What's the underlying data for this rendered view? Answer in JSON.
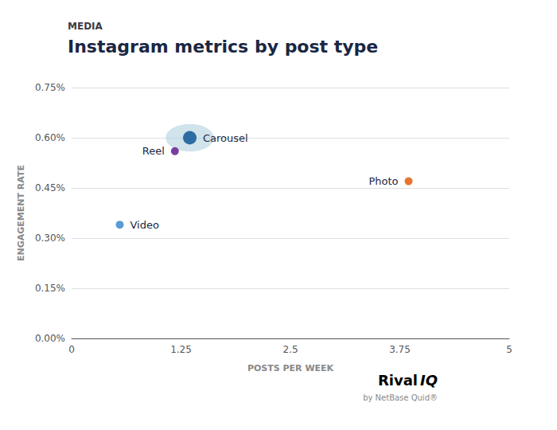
{
  "chart_data": {
    "type": "scatter",
    "title": "Instagram metrics by post type",
    "subtitle": "MEDIA",
    "xlabel": "POSTS PER WEEK",
    "ylabel": "ENGAGEMENT RATE",
    "labels": [
      "Carousel",
      "Reel",
      "Photo",
      "Video"
    ],
    "x": [
      1.35,
      1.18,
      3.85,
      0.55
    ],
    "values": [
      0.006,
      0.0056,
      0.0047,
      0.0034
    ],
    "colors": [
      "#2e6da4",
      "#7b3fa0",
      "#e87430",
      "#5b9bd5"
    ],
    "bubble": {
      "x": 1.35,
      "y": 0.006,
      "width": 0.55,
      "height": 0.000825,
      "color": "#b8d4e0"
    },
    "xlim": [
      0,
      5
    ],
    "ylim": [
      0,
      0.0075
    ],
    "xticks": [
      0,
      1.25,
      2.5,
      3.75,
      5
    ],
    "yticks": [
      {
        "value": 0.0,
        "label": "0.00%"
      },
      {
        "value": 0.0015,
        "label": "0.15%"
      },
      {
        "value": 0.003,
        "label": "0.30%"
      },
      {
        "value": 0.0045,
        "label": "0.45%"
      },
      {
        "value": 0.006,
        "label": "0.60%"
      },
      {
        "value": 0.0075,
        "label": "0.75%"
      }
    ],
    "grid": "y",
    "annotations": [
      "Rival",
      "IQ",
      "by NetBase Quid®"
    ]
  }
}
